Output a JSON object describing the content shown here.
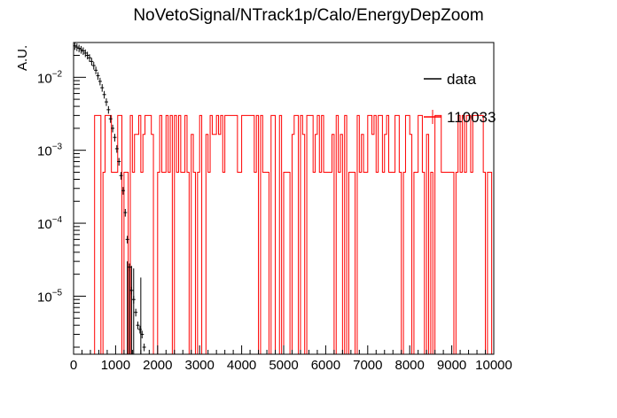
{
  "chart_data": {
    "type": "histogram",
    "title": "NoVetoSignal/NTrack1p/Calo/EnergyDepZoom",
    "xlabel": "",
    "ylabel": "A.U.",
    "xlim": [
      0,
      10000
    ],
    "ylim": [
      1.6e-06,
      0.03
    ],
    "yscale": "log",
    "grid": false,
    "legend_position": "top-right",
    "x_ticks": [
      "0",
      "1000",
      "2000",
      "3000",
      "4000",
      "5000",
      "6000",
      "7000",
      "8000",
      "9000",
      "10000"
    ],
    "y_ticks": [
      {
        "base": "10",
        "exp": "−2",
        "value": 0.01
      },
      {
        "base": "10",
        "exp": "−3",
        "value": 0.001
      },
      {
        "base": "10",
        "exp": "−4",
        "value": 0.0001
      },
      {
        "base": "10",
        "exp": "−5",
        "value": 1e-05
      }
    ],
    "series": [
      {
        "name": "data",
        "color": "#000000",
        "style": "errorbar",
        "points": [
          [
            30,
            0.027
          ],
          [
            80,
            0.026
          ],
          [
            130,
            0.025
          ],
          [
            180,
            0.024
          ],
          [
            230,
            0.023
          ],
          [
            280,
            0.0215
          ],
          [
            330,
            0.02
          ],
          [
            380,
            0.0185
          ],
          [
            430,
            0.0165
          ],
          [
            480,
            0.0145
          ],
          [
            530,
            0.0125
          ],
          [
            580,
            0.0105
          ],
          [
            630,
            0.0088
          ],
          [
            680,
            0.0072
          ],
          [
            730,
            0.0058
          ],
          [
            780,
            0.0046
          ],
          [
            830,
            0.0036
          ],
          [
            880,
            0.0027
          ],
          [
            930,
            0.002
          ],
          [
            980,
            0.0015
          ],
          [
            1030,
            0.00105
          ],
          [
            1080,
            0.0007
          ],
          [
            1130,
            0.00045
          ],
          [
            1180,
            0.00028
          ],
          [
            1230,
            0.00014
          ],
          [
            1280,
            6e-05
          ],
          [
            1330,
            2.5e-05
          ],
          [
            1380,
            1.2e-05
          ],
          [
            1430,
            9e-06
          ],
          [
            1480,
            6e-06
          ],
          [
            1530,
            4e-06
          ],
          [
            1580,
            3.5e-06
          ],
          [
            1630,
            3e-06
          ],
          [
            1680,
            2e-06
          ]
        ]
      },
      {
        "name": "110033",
        "color": "#ff0000",
        "style": "spiky-hist",
        "bins": 200,
        "high_level": 0.003,
        "base_level": 0.0005,
        "low_floor": 1.6e-06
      }
    ]
  }
}
